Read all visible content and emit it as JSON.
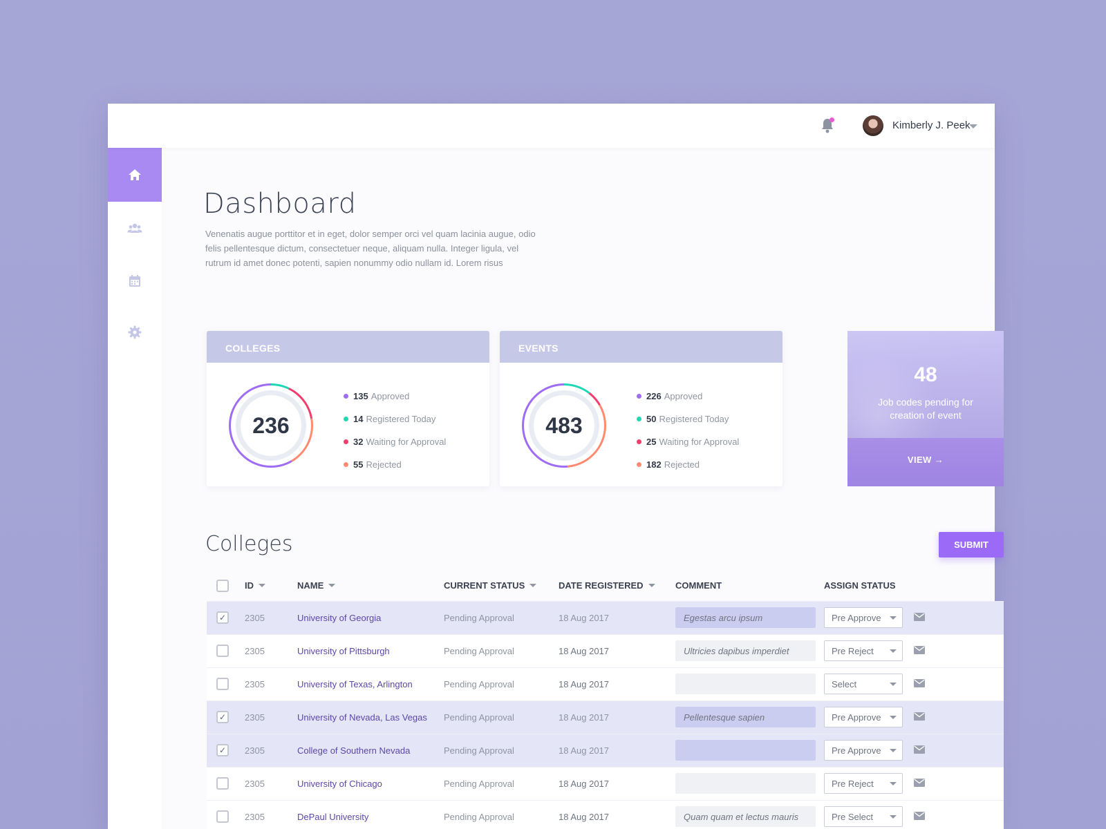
{
  "header": {
    "user_name": "Kimberly J. Peek",
    "icons": [
      "bell-icon",
      "avatar",
      "caret-down-icon"
    ]
  },
  "sidebar": {
    "items": [
      {
        "icon": "home-icon",
        "active": true
      },
      {
        "icon": "users-icon",
        "active": false
      },
      {
        "icon": "calendar-icon",
        "active": false
      },
      {
        "icon": "gear-icon",
        "active": false
      }
    ]
  },
  "page": {
    "title": "Dashboard",
    "description": "Venenatis augue porttitor et in eget, dolor semper orci vel quam lacinia augue, odio felis pellentesque dictum, consectetuer neque, aliquam nulla. Integer ligula, vel rutrum id amet donec potenti, sapien nonummy odio nullam id. Lorem risus"
  },
  "cards": {
    "colleges": {
      "title": "COLLEGES",
      "total": "236",
      "stats": [
        {
          "value": "135",
          "label": "Approved",
          "color": "#9e6cf5"
        },
        {
          "value": "14",
          "label": "Registered Today",
          "color": "#21d8b5"
        },
        {
          "value": "32",
          "label": "Waiting for Approval",
          "color": "#ef3e6e"
        },
        {
          "value": "55",
          "label": "Rejected",
          "color": "#ff8a70"
        }
      ]
    },
    "events": {
      "title": "EVENTS",
      "total": "483",
      "stats": [
        {
          "value": "226",
          "label": "Approved",
          "color": "#9e6cf5"
        },
        {
          "value": "50",
          "label": "Registered Today",
          "color": "#21d8b5"
        },
        {
          "value": "25",
          "label": "Waiting for Approval",
          "color": "#ef3e6e"
        },
        {
          "value": "182",
          "label": "Rejected",
          "color": "#ff8a70"
        }
      ]
    },
    "promo": {
      "number": "48",
      "text": "Job codes pending for creation of event",
      "view_label": "VIEW →"
    }
  },
  "colleges_section": {
    "title": "Colleges",
    "submit_label": "SUBMIT",
    "columns": [
      "ID",
      "NAME",
      "CURRENT STATUS",
      "DATE REGISTERED",
      "COMMENT",
      "ASSIGN STATUS"
    ],
    "rows": [
      {
        "checked": true,
        "id": "2305",
        "name": "University of Georgia",
        "status": "Pending Approval",
        "date": "18 Aug 2017",
        "comment": "Egestas arcu ipsum",
        "assign": "Pre Approve"
      },
      {
        "checked": false,
        "id": "2305",
        "name": "University of Pittsburgh",
        "status": "Pending Approval",
        "date": "18 Aug 2017",
        "comment": "Ultricies dapibus imperdiet",
        "assign": "Pre Reject"
      },
      {
        "checked": false,
        "id": "2305",
        "name": "University of Texas, Arlington",
        "status": "Pending Approval",
        "date": "18 Aug 2017",
        "comment": "",
        "assign": "Select"
      },
      {
        "checked": true,
        "id": "2305",
        "name": "University of Nevada, Las Vegas",
        "status": "Pending Approval",
        "date": "18 Aug 2017",
        "comment": "Pellentesque sapien",
        "assign": "Pre Approve"
      },
      {
        "checked": true,
        "id": "2305",
        "name": "College of Southern Nevada",
        "status": "Pending Approval",
        "date": "18 Aug 2017",
        "comment": "",
        "assign": "Pre Approve"
      },
      {
        "checked": false,
        "id": "2305",
        "name": "University of Chicago",
        "status": "Pending Approval",
        "date": "18 Aug 2017",
        "comment": "",
        "assign": "Pre Reject"
      },
      {
        "checked": false,
        "id": "2305",
        "name": "DePaul University",
        "status": "Pending Approval",
        "date": "18 Aug 2017",
        "comment": "Quam quam et lectus mauris",
        "assign": "Pre Select"
      }
    ]
  },
  "colors": {
    "accent": "#9b6af6",
    "sidebar_active": "#a88af2",
    "card_header": "#c6c8e8",
    "selected_row": "#e4e5f6"
  }
}
